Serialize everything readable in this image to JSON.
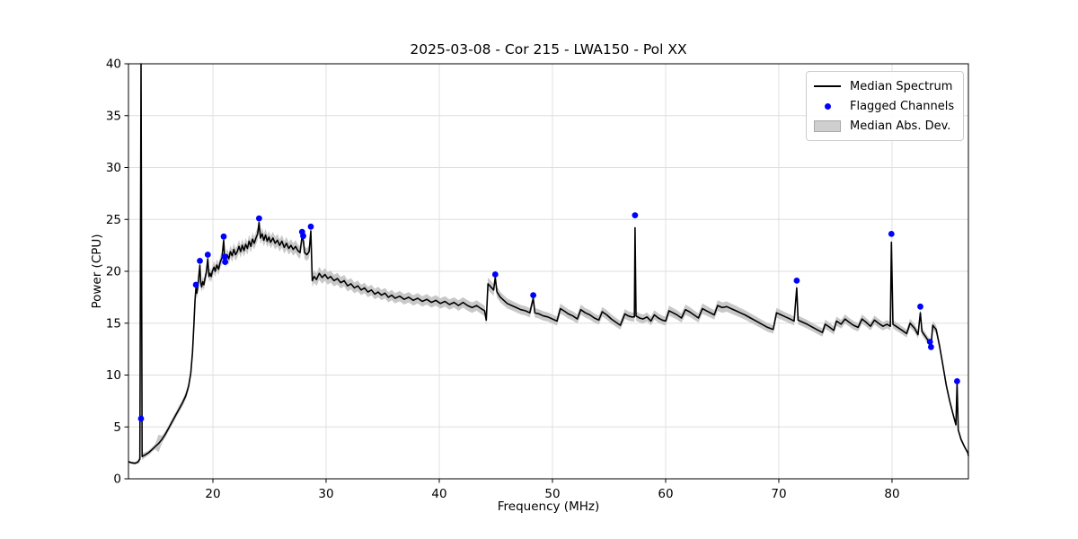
{
  "chart_data": {
    "type": "line",
    "title": "2025-03-08 - Cor 215 - LWA150 - Pol XX",
    "xlabel": "Frequency (MHz)",
    "ylabel": "Power (CPU)",
    "xlim": [
      12.54,
      86.75
    ],
    "ylim": [
      0,
      40
    ],
    "xticks": [
      20,
      30,
      40,
      50,
      60,
      70,
      80
    ],
    "yticks": [
      0,
      5,
      10,
      15,
      20,
      25,
      30,
      35,
      40
    ],
    "grid": true,
    "legend_position": "upper right",
    "legend": [
      "Median Spectrum",
      "Flagged Channels",
      "Median Abs. Dev."
    ],
    "colors": {
      "line": "#000000",
      "flagged": "#0000ff",
      "band": "#c8c8c8",
      "grid": "#dedede",
      "spine": "#000000"
    },
    "series": [
      {
        "name": "Median Spectrum",
        "format": "f, power, mad"
      }
    ],
    "median": [
      [
        12.54,
        1.65,
        0.12
      ],
      [
        12.8,
        1.55,
        0.12
      ],
      [
        13.1,
        1.5,
        0.12
      ],
      [
        13.35,
        1.6,
        0.15
      ],
      [
        13.55,
        1.9,
        0.35
      ],
      [
        13.65,
        40,
        0.1
      ],
      [
        13.75,
        2.15,
        0.35
      ],
      [
        14.0,
        2.3,
        0.25
      ],
      [
        14.3,
        2.5,
        0.22
      ],
      [
        14.6,
        2.8,
        0.22
      ],
      [
        14.9,
        3.1,
        0.25
      ],
      [
        15.2,
        3.4,
        0.85
      ],
      [
        15.5,
        3.8,
        0.35
      ],
      [
        15.8,
        4.3,
        0.3
      ],
      [
        16.1,
        4.9,
        0.3
      ],
      [
        16.4,
        5.5,
        0.3
      ],
      [
        16.7,
        6.1,
        0.3
      ],
      [
        17.0,
        6.7,
        0.32
      ],
      [
        17.3,
        7.3,
        0.34
      ],
      [
        17.6,
        8.0,
        0.36
      ],
      [
        17.85,
        8.9,
        0.38
      ],
      [
        18.05,
        10.2,
        0.42
      ],
      [
        18.2,
        12.2,
        0.46
      ],
      [
        18.32,
        14.8,
        0.5
      ],
      [
        18.42,
        17.2,
        0.52
      ],
      [
        18.5,
        18.4,
        0.55
      ],
      [
        18.58,
        17.9,
        0.52
      ],
      [
        18.68,
        18.6,
        0.54
      ],
      [
        18.78,
        19.8,
        0.56
      ],
      [
        18.85,
        20.6,
        0.58
      ],
      [
        18.92,
        18.9,
        0.54
      ],
      [
        19.0,
        18.5,
        0.52
      ],
      [
        19.1,
        19.0,
        0.54
      ],
      [
        19.2,
        18.7,
        0.52
      ],
      [
        19.3,
        19.3,
        0.54
      ],
      [
        19.42,
        19.9,
        0.56
      ],
      [
        19.55,
        21.2,
        0.6
      ],
      [
        19.65,
        19.5,
        0.55
      ],
      [
        19.75,
        19.8,
        0.55
      ],
      [
        19.85,
        19.5,
        0.55
      ],
      [
        19.95,
        20.0,
        0.56
      ],
      [
        20.1,
        20.4,
        0.58
      ],
      [
        20.2,
        20.0,
        0.56
      ],
      [
        20.35,
        20.6,
        0.58
      ],
      [
        20.5,
        20.2,
        0.56
      ],
      [
        20.65,
        20.9,
        0.58
      ],
      [
        20.8,
        21.3,
        0.6
      ],
      [
        20.95,
        23.0,
        0.6
      ],
      [
        21.05,
        21.2,
        0.58
      ],
      [
        21.15,
        21.0,
        0.58
      ],
      [
        21.25,
        21.6,
        0.6
      ],
      [
        21.4,
        21.2,
        0.58
      ],
      [
        21.55,
        21.9,
        0.6
      ],
      [
        21.7,
        21.5,
        0.6
      ],
      [
        21.85,
        22.1,
        0.62
      ],
      [
        22.0,
        21.6,
        0.6
      ],
      [
        22.15,
        21.9,
        0.6
      ],
      [
        22.3,
        22.4,
        0.62
      ],
      [
        22.45,
        21.9,
        0.6
      ],
      [
        22.6,
        22.5,
        0.62
      ],
      [
        22.75,
        22.0,
        0.6
      ],
      [
        22.9,
        22.6,
        0.62
      ],
      [
        23.05,
        22.2,
        0.6
      ],
      [
        23.2,
        22.9,
        0.63
      ],
      [
        23.35,
        22.4,
        0.6
      ],
      [
        23.5,
        23.1,
        0.63
      ],
      [
        23.65,
        22.7,
        0.6
      ],
      [
        23.8,
        23.2,
        0.62
      ],
      [
        23.95,
        23.6,
        0.63
      ],
      [
        24.08,
        24.7,
        0.6
      ],
      [
        24.2,
        23.2,
        0.6
      ],
      [
        24.35,
        23.6,
        0.6
      ],
      [
        24.5,
        23.0,
        0.6
      ],
      [
        24.65,
        23.5,
        0.6
      ],
      [
        24.8,
        22.9,
        0.6
      ],
      [
        24.95,
        23.3,
        0.6
      ],
      [
        25.1,
        22.8,
        0.6
      ],
      [
        25.3,
        23.2,
        0.6
      ],
      [
        25.5,
        22.7,
        0.6
      ],
      [
        25.7,
        23.0,
        0.6
      ],
      [
        25.9,
        22.5,
        0.6
      ],
      [
        26.1,
        22.9,
        0.6
      ],
      [
        26.3,
        22.3,
        0.6
      ],
      [
        26.5,
        22.7,
        0.6
      ],
      [
        26.7,
        22.2,
        0.6
      ],
      [
        26.9,
        22.5,
        0.6
      ],
      [
        27.1,
        22.1,
        0.6
      ],
      [
        27.3,
        22.4,
        0.6
      ],
      [
        27.5,
        22.0,
        0.6
      ],
      [
        27.7,
        21.8,
        0.6
      ],
      [
        27.88,
        23.4,
        0.6
      ],
      [
        28.0,
        22.9,
        0.6
      ],
      [
        28.1,
        21.8,
        0.6
      ],
      [
        28.3,
        21.6,
        0.6
      ],
      [
        28.5,
        21.9,
        0.6
      ],
      [
        28.65,
        23.9,
        0.6
      ],
      [
        28.78,
        19.1,
        0.6
      ],
      [
        28.95,
        19.5,
        0.6
      ],
      [
        29.15,
        19.2,
        0.6
      ],
      [
        29.4,
        19.8,
        0.62
      ],
      [
        29.65,
        19.4,
        0.6
      ],
      [
        29.9,
        19.7,
        0.62
      ],
      [
        30.15,
        19.3,
        0.6
      ],
      [
        30.4,
        19.5,
        0.58
      ],
      [
        30.7,
        19.1,
        0.56
      ],
      [
        31.0,
        19.3,
        0.56
      ],
      [
        31.3,
        18.9,
        0.55
      ],
      [
        31.6,
        19.1,
        0.55
      ],
      [
        31.9,
        18.6,
        0.54
      ],
      [
        32.2,
        18.8,
        0.54
      ],
      [
        32.5,
        18.4,
        0.52
      ],
      [
        32.8,
        18.6,
        0.52
      ],
      [
        33.1,
        18.2,
        0.5
      ],
      [
        33.4,
        18.4,
        0.5
      ],
      [
        33.7,
        18.0,
        0.5
      ],
      [
        34.0,
        18.2,
        0.5
      ],
      [
        34.3,
        17.8,
        0.5
      ],
      [
        34.6,
        18.0,
        0.5
      ],
      [
        34.9,
        17.7,
        0.5
      ],
      [
        35.2,
        17.9,
        0.5
      ],
      [
        35.5,
        17.5,
        0.5
      ],
      [
        35.8,
        17.7,
        0.5
      ],
      [
        36.1,
        17.4,
        0.5
      ],
      [
        36.5,
        17.6,
        0.5
      ],
      [
        36.9,
        17.3,
        0.5
      ],
      [
        37.3,
        17.5,
        0.5
      ],
      [
        37.7,
        17.2,
        0.5
      ],
      [
        38.1,
        17.4,
        0.5
      ],
      [
        38.5,
        17.1,
        0.5
      ],
      [
        38.9,
        17.3,
        0.5
      ],
      [
        39.3,
        17.0,
        0.5
      ],
      [
        39.7,
        17.2,
        0.5
      ],
      [
        40.1,
        16.9,
        0.5
      ],
      [
        40.5,
        17.1,
        0.5
      ],
      [
        40.9,
        16.8,
        0.5
      ],
      [
        41.3,
        17.0,
        0.5
      ],
      [
        41.7,
        16.7,
        0.5
      ],
      [
        42.1,
        17.0,
        0.5
      ],
      [
        42.5,
        16.7,
        0.5
      ],
      [
        42.9,
        16.5,
        0.5
      ],
      [
        43.3,
        16.7,
        0.5
      ],
      [
        43.7,
        16.4,
        0.5
      ],
      [
        44.0,
        16.2,
        0.5
      ],
      [
        44.15,
        15.3,
        0.5
      ],
      [
        44.3,
        18.8,
        0.6
      ],
      [
        44.55,
        18.5,
        0.58
      ],
      [
        44.8,
        18.2,
        0.55
      ],
      [
        44.95,
        19.4,
        0.55
      ],
      [
        45.1,
        18.0,
        0.52
      ],
      [
        45.4,
        17.5,
        0.5
      ],
      [
        45.7,
        17.2,
        0.5
      ],
      [
        46.0,
        16.9,
        0.48
      ],
      [
        46.4,
        16.7,
        0.46
      ],
      [
        46.8,
        16.5,
        0.46
      ],
      [
        47.2,
        16.3,
        0.45
      ],
      [
        47.6,
        16.2,
        0.45
      ],
      [
        48.0,
        16.0,
        0.45
      ],
      [
        48.3,
        17.4,
        0.45
      ],
      [
        48.45,
        16.0,
        0.45
      ],
      [
        48.8,
        15.9,
        0.45
      ],
      [
        49.2,
        15.7,
        0.45
      ],
      [
        49.6,
        15.6,
        0.44
      ],
      [
        50.0,
        15.4,
        0.44
      ],
      [
        50.4,
        15.2,
        0.44
      ],
      [
        50.7,
        16.4,
        0.48
      ],
      [
        51.0,
        16.2,
        0.46
      ],
      [
        51.4,
        15.9,
        0.45
      ],
      [
        51.8,
        15.7,
        0.45
      ],
      [
        52.2,
        15.4,
        0.44
      ],
      [
        52.5,
        16.3,
        0.48
      ],
      [
        52.9,
        16.0,
        0.46
      ],
      [
        53.3,
        15.8,
        0.45
      ],
      [
        53.7,
        15.5,
        0.44
      ],
      [
        54.1,
        15.3,
        0.44
      ],
      [
        54.4,
        16.1,
        0.46
      ],
      [
        54.8,
        15.8,
        0.45
      ],
      [
        55.2,
        15.4,
        0.44
      ],
      [
        55.6,
        15.1,
        0.43
      ],
      [
        56.0,
        14.8,
        0.42
      ],
      [
        56.4,
        15.9,
        0.46
      ],
      [
        56.7,
        15.7,
        0.45
      ],
      [
        57.0,
        15.6,
        0.44
      ],
      [
        57.24,
        15.6,
        0.44
      ],
      [
        57.3,
        24.2,
        0.45
      ],
      [
        57.38,
        15.7,
        0.44
      ],
      [
        57.7,
        15.5,
        0.44
      ],
      [
        58.0,
        15.4,
        0.43
      ],
      [
        58.35,
        15.6,
        0.44
      ],
      [
        58.7,
        15.2,
        0.43
      ],
      [
        59.0,
        15.8,
        0.46
      ],
      [
        59.35,
        15.5,
        0.44
      ],
      [
        59.7,
        15.3,
        0.43
      ],
      [
        60.0,
        15.2,
        0.43
      ],
      [
        60.3,
        16.2,
        0.48
      ],
      [
        60.65,
        16.0,
        0.46
      ],
      [
        61.0,
        15.8,
        0.46
      ],
      [
        61.4,
        15.5,
        0.44
      ],
      [
        61.75,
        16.3,
        0.5
      ],
      [
        62.1,
        16.1,
        0.48
      ],
      [
        62.5,
        15.8,
        0.46
      ],
      [
        62.9,
        15.5,
        0.44
      ],
      [
        63.25,
        16.4,
        0.5
      ],
      [
        63.6,
        16.2,
        0.48
      ],
      [
        63.95,
        16.0,
        0.46
      ],
      [
        64.3,
        15.8,
        0.46
      ],
      [
        64.6,
        16.7,
        0.52
      ],
      [
        65.0,
        16.5,
        0.5
      ],
      [
        65.4,
        16.6,
        0.5
      ],
      [
        65.8,
        16.4,
        0.48
      ],
      [
        66.2,
        16.2,
        0.48
      ],
      [
        66.6,
        16.0,
        0.46
      ],
      [
        67.0,
        15.8,
        0.46
      ],
      [
        67.5,
        15.5,
        0.44
      ],
      [
        68.0,
        15.2,
        0.44
      ],
      [
        68.5,
        14.9,
        0.42
      ],
      [
        69.0,
        14.6,
        0.42
      ],
      [
        69.5,
        14.4,
        0.4
      ],
      [
        69.8,
        16.0,
        0.48
      ],
      [
        70.2,
        15.8,
        0.46
      ],
      [
        70.6,
        15.6,
        0.44
      ],
      [
        71.0,
        15.4,
        0.44
      ],
      [
        71.35,
        15.2,
        0.43
      ],
      [
        71.58,
        18.4,
        0.44
      ],
      [
        71.7,
        15.3,
        0.43
      ],
      [
        72.1,
        15.1,
        0.42
      ],
      [
        72.5,
        14.9,
        0.42
      ],
      [
        73.0,
        14.6,
        0.4
      ],
      [
        73.5,
        14.3,
        0.4
      ],
      [
        73.85,
        14.1,
        0.4
      ],
      [
        74.1,
        14.9,
        0.44
      ],
      [
        74.5,
        14.6,
        0.42
      ],
      [
        74.85,
        14.3,
        0.4
      ],
      [
        75.1,
        15.2,
        0.44
      ],
      [
        75.5,
        14.9,
        0.42
      ],
      [
        75.85,
        15.4,
        0.44
      ],
      [
        76.2,
        15.1,
        0.42
      ],
      [
        76.6,
        14.8,
        0.42
      ],
      [
        77.0,
        14.6,
        0.4
      ],
      [
        77.35,
        15.4,
        0.44
      ],
      [
        77.7,
        15.1,
        0.42
      ],
      [
        78.1,
        14.7,
        0.4
      ],
      [
        78.45,
        15.3,
        0.43
      ],
      [
        78.8,
        15.0,
        0.42
      ],
      [
        79.2,
        14.7,
        0.4
      ],
      [
        79.55,
        14.9,
        0.4
      ],
      [
        79.85,
        14.7,
        0.4
      ],
      [
        79.95,
        22.8,
        0.42
      ],
      [
        80.08,
        14.9,
        0.4
      ],
      [
        80.5,
        14.6,
        0.4
      ],
      [
        80.9,
        14.3,
        0.38
      ],
      [
        81.3,
        14.0,
        0.38
      ],
      [
        81.6,
        15.0,
        0.42
      ],
      [
        82.0,
        14.5,
        0.4
      ],
      [
        82.3,
        13.9,
        0.38
      ],
      [
        82.5,
        16.0,
        0.42
      ],
      [
        82.65,
        14.2,
        0.38
      ],
      [
        82.9,
        13.8,
        0.36
      ],
      [
        83.15,
        13.4,
        0.36
      ],
      [
        83.35,
        13.1,
        0.36
      ],
      [
        83.45,
        12.8,
        0.35
      ],
      [
        83.6,
        14.8,
        0.42
      ],
      [
        83.9,
        14.4,
        0.4
      ],
      [
        84.2,
        12.8,
        0.36
      ],
      [
        84.5,
        10.9,
        0.32
      ],
      [
        84.8,
        9.0,
        0.3
      ],
      [
        85.1,
        7.5,
        0.28
      ],
      [
        85.4,
        6.2,
        0.26
      ],
      [
        85.65,
        5.2,
        0.24
      ],
      [
        85.75,
        9.2,
        0.24
      ],
      [
        85.85,
        4.7,
        0.22
      ],
      [
        86.1,
        3.8,
        0.2
      ],
      [
        86.4,
        3.1,
        0.18
      ],
      [
        86.7,
        2.5,
        0.15
      ],
      [
        86.75,
        2.2,
        0.13
      ]
    ],
    "flagged": [
      [
        13.65,
        5.8
      ],
      [
        18.5,
        18.7
      ],
      [
        18.85,
        21.0
      ],
      [
        19.55,
        21.6
      ],
      [
        20.95,
        23.35
      ],
      [
        21.03,
        21.4
      ],
      [
        21.08,
        20.9
      ],
      [
        24.08,
        25.1
      ],
      [
        27.88,
        23.8
      ],
      [
        27.98,
        23.4
      ],
      [
        28.65,
        24.3
      ],
      [
        44.95,
        19.7
      ],
      [
        48.3,
        17.7
      ],
      [
        57.3,
        25.4
      ],
      [
        71.58,
        19.1
      ],
      [
        79.95,
        23.6
      ],
      [
        82.5,
        16.6
      ],
      [
        83.35,
        13.2
      ],
      [
        83.45,
        12.7
      ],
      [
        85.75,
        9.4
      ]
    ]
  }
}
